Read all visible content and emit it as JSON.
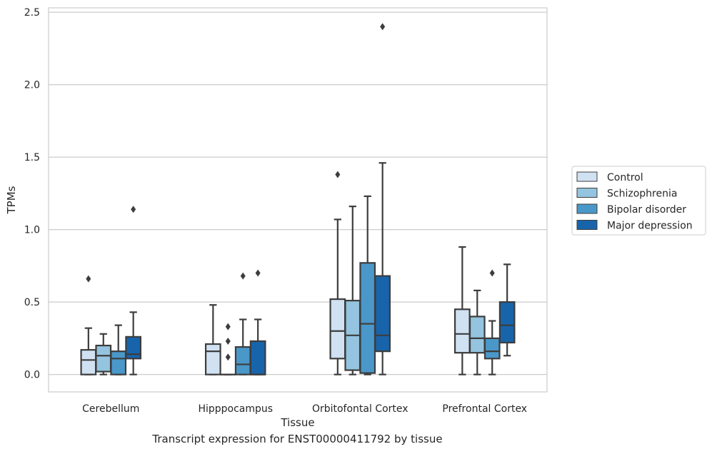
{
  "caption": "Transcript expression for ENST00000411792 by tissue",
  "chart_data": {
    "type": "box",
    "xlabel": "Tissue",
    "ylabel": "TPMs",
    "ylim": [
      -0.12,
      2.53
    ],
    "yticks": [
      0.0,
      0.5,
      1.0,
      1.5,
      2.0,
      2.5
    ],
    "ytick_labels": [
      "0.0",
      "0.5",
      "1.0",
      "1.5",
      "2.0",
      "2.5"
    ],
    "grid": "horizontal",
    "legend_position": "right",
    "categories": [
      "Cerebellum",
      "Hipppocampus",
      "Orbitofontal Cortex",
      "Prefrontal Cortex"
    ],
    "series": [
      {
        "name": "Control",
        "color": "#d0e1f2",
        "boxes": [
          {
            "whislo": 0.0,
            "q1": 0.0,
            "med": 0.1,
            "q3": 0.17,
            "whishi": 0.32,
            "fliers": [
              0.66
            ]
          },
          {
            "whislo": 0.0,
            "q1": 0.0,
            "med": 0.16,
            "q3": 0.21,
            "whishi": 0.48,
            "fliers": []
          },
          {
            "whislo": 0.0,
            "q1": 0.11,
            "med": 0.3,
            "q3": 0.52,
            "whishi": 1.07,
            "fliers": [
              1.38
            ]
          },
          {
            "whislo": 0.0,
            "q1": 0.15,
            "med": 0.28,
            "q3": 0.45,
            "whishi": 0.88,
            "fliers": []
          }
        ]
      },
      {
        "name": "Schizophrenia",
        "color": "#94c4df",
        "boxes": [
          {
            "whislo": 0.0,
            "q1": 0.02,
            "med": 0.13,
            "q3": 0.2,
            "whishi": 0.28,
            "fliers": []
          },
          {
            "whislo": 0.0,
            "q1": 0.0,
            "med": 0.0,
            "q3": 0.0,
            "whishi": 0.0,
            "fliers": [
              0.12,
              0.23,
              0.33
            ]
          },
          {
            "whislo": 0.0,
            "q1": 0.03,
            "med": 0.27,
            "q3": 0.51,
            "whishi": 1.16,
            "fliers": []
          },
          {
            "whislo": 0.0,
            "q1": 0.15,
            "med": 0.25,
            "q3": 0.4,
            "whishi": 0.58,
            "fliers": []
          }
        ]
      },
      {
        "name": "Bipolar disorder",
        "color": "#4a98c9",
        "boxes": [
          {
            "whislo": 0.0,
            "q1": 0.0,
            "med": 0.11,
            "q3": 0.16,
            "whishi": 0.34,
            "fliers": []
          },
          {
            "whislo": 0.0,
            "q1": 0.0,
            "med": 0.07,
            "q3": 0.19,
            "whishi": 0.38,
            "fliers": [
              0.68
            ]
          },
          {
            "whislo": 0.0,
            "q1": 0.01,
            "med": 0.35,
            "q3": 0.77,
            "whishi": 1.23,
            "fliers": []
          },
          {
            "whislo": 0.0,
            "q1": 0.11,
            "med": 0.16,
            "q3": 0.25,
            "whishi": 0.37,
            "fliers": [
              0.7
            ]
          }
        ]
      },
      {
        "name": "Major depression",
        "color": "#1764ab",
        "boxes": [
          {
            "whislo": 0.0,
            "q1": 0.11,
            "med": 0.14,
            "q3": 0.26,
            "whishi": 0.43,
            "fliers": [
              1.14
            ]
          },
          {
            "whislo": 0.0,
            "q1": 0.0,
            "med": 0.0,
            "q3": 0.23,
            "whishi": 0.38,
            "fliers": [
              0.7
            ]
          },
          {
            "whislo": 0.0,
            "q1": 0.16,
            "med": 0.27,
            "q3": 0.68,
            "whishi": 1.46,
            "fliers": [
              2.4
            ]
          },
          {
            "whislo": 0.13,
            "q1": 0.22,
            "med": 0.34,
            "q3": 0.5,
            "whishi": 0.76,
            "fliers": []
          }
        ]
      }
    ]
  }
}
